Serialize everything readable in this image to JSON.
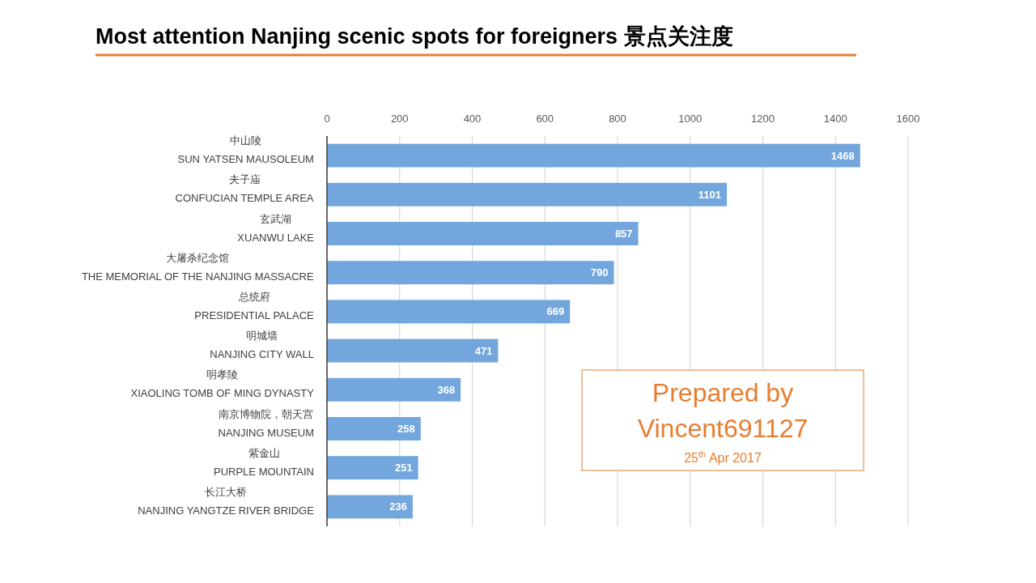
{
  "chart_data": {
    "type": "bar",
    "orientation": "horizontal",
    "title": "Most attention Nanjing scenic spots for foreigners 景点关注度",
    "categories": [
      "中山陵\nSUN YATSEN MAUSOLEUM",
      "夫子庙\nCONFUCIAN TEMPLE AREA",
      "玄武湖\nXUANWU LAKE",
      "大屠杀纪念馆\nTHE MEMORIAL OF THE NANJING MASSACRE",
      "总统府\nPRESIDENTIAL PALACE",
      "明城墙\nNANJING CITY WALL",
      "明孝陵\nXIAOLING TOMB OF MING DYNASTY",
      "南京博物院，朝天宫\nNANJING MUSEUM",
      "紫金山\nPURPLE MOUNTAIN",
      "长江大桥\nNANJING YANGTZE RIVER BRIDGE"
    ],
    "values": [
      1468,
      1101,
      857,
      790,
      669,
      471,
      368,
      258,
      251,
      236
    ],
    "color": "#72a6dc",
    "xlim": [
      0,
      1600
    ],
    "xticks": [
      0,
      200,
      400,
      600,
      800,
      1000,
      1200,
      1400,
      1600
    ],
    "grid": "x",
    "data_labels": true,
    "annotations": [
      "Prepared by\nVincent691127",
      "25$^{th}$ Apr 2017"
    ]
  }
}
